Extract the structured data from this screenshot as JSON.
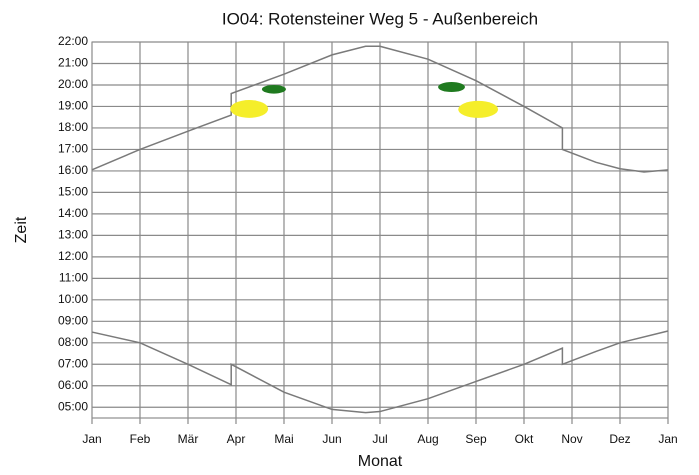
{
  "chart_data": {
    "type": "line",
    "title": "IO04: Rotensteiner Weg 5 - Außenbereich",
    "xlabel": "Monat",
    "ylabel": "Zeit",
    "xlim": [
      0,
      12
    ],
    "xticks": [
      {
        "value": 0,
        "label": "Jan"
      },
      {
        "value": 1,
        "label": "Feb"
      },
      {
        "value": 2,
        "label": "Mär"
      },
      {
        "value": 3,
        "label": "Apr"
      },
      {
        "value": 4,
        "label": "Mai"
      },
      {
        "value": 5,
        "label": "Jun"
      },
      {
        "value": 6,
        "label": "Jul"
      },
      {
        "value": 7,
        "label": "Aug"
      },
      {
        "value": 8,
        "label": "Sep"
      },
      {
        "value": 9,
        "label": "Okt"
      },
      {
        "value": 10,
        "label": "Nov"
      },
      {
        "value": 11,
        "label": "Dez"
      },
      {
        "value": 12,
        "label": "Jan"
      }
    ],
    "ylim": [
      4.5,
      22
    ],
    "yticks": [
      {
        "value": 5,
        "label": "05:00"
      },
      {
        "value": 6,
        "label": "06:00"
      },
      {
        "value": 7,
        "label": "07:00"
      },
      {
        "value": 8,
        "label": "08:00"
      },
      {
        "value": 9,
        "label": "09:00"
      },
      {
        "value": 10,
        "label": "10:00"
      },
      {
        "value": 11,
        "label": "11:00"
      },
      {
        "value": 12,
        "label": "12:00"
      },
      {
        "value": 13,
        "label": "13:00"
      },
      {
        "value": 14,
        "label": "14:00"
      },
      {
        "value": 15,
        "label": "15:00"
      },
      {
        "value": 16,
        "label": "16:00"
      },
      {
        "value": 17,
        "label": "17:00"
      },
      {
        "value": 18,
        "label": "18:00"
      },
      {
        "value": 19,
        "label": "19:00"
      },
      {
        "value": 20,
        "label": "20:00"
      },
      {
        "value": 21,
        "label": "21:00"
      },
      {
        "value": 22,
        "label": "22:00"
      }
    ],
    "grid": true,
    "series": [
      {
        "color": "#7a7a7a",
        "x": [
          0,
          1,
          2,
          2.9,
          2.9,
          4,
          5,
          5.7,
          6,
          7,
          8,
          9,
          9.8,
          9.8,
          10.5,
          11,
          11.5,
          12
        ],
        "values": [
          16.05,
          17.0,
          17.85,
          18.6,
          19.6,
          20.5,
          21.4,
          21.8,
          21.8,
          21.2,
          20.2,
          19.0,
          18.0,
          17.0,
          16.4,
          16.1,
          15.95,
          16.05
        ]
      },
      {
        "color": "#7a7a7a",
        "x": [
          0,
          1,
          2,
          2.9,
          2.9,
          4,
          5,
          5.7,
          6,
          7,
          8,
          9,
          9.8,
          9.8,
          10.5,
          11,
          12
        ],
        "values": [
          8.5,
          8.0,
          7.0,
          6.05,
          7.0,
          5.7,
          4.9,
          4.75,
          4.8,
          5.4,
          6.2,
          7.0,
          7.75,
          7.0,
          7.6,
          8.0,
          8.55
        ]
      }
    ],
    "zones": [
      {
        "color": "#f5ee2a",
        "x": [
          2.88,
          3.67
        ],
        "values": [
          18.47,
          19.3
        ]
      },
      {
        "color": "#1f7a1f",
        "x": [
          3.54,
          4.04
        ],
        "values": [
          19.6,
          20.0
        ]
      },
      {
        "color": "#1f7a1f",
        "x": [
          7.21,
          7.77
        ],
        "values": [
          19.67,
          20.14
        ]
      },
      {
        "color": "#f5ee2a",
        "x": [
          7.63,
          8.46
        ],
        "values": [
          18.47,
          19.26
        ]
      }
    ]
  }
}
